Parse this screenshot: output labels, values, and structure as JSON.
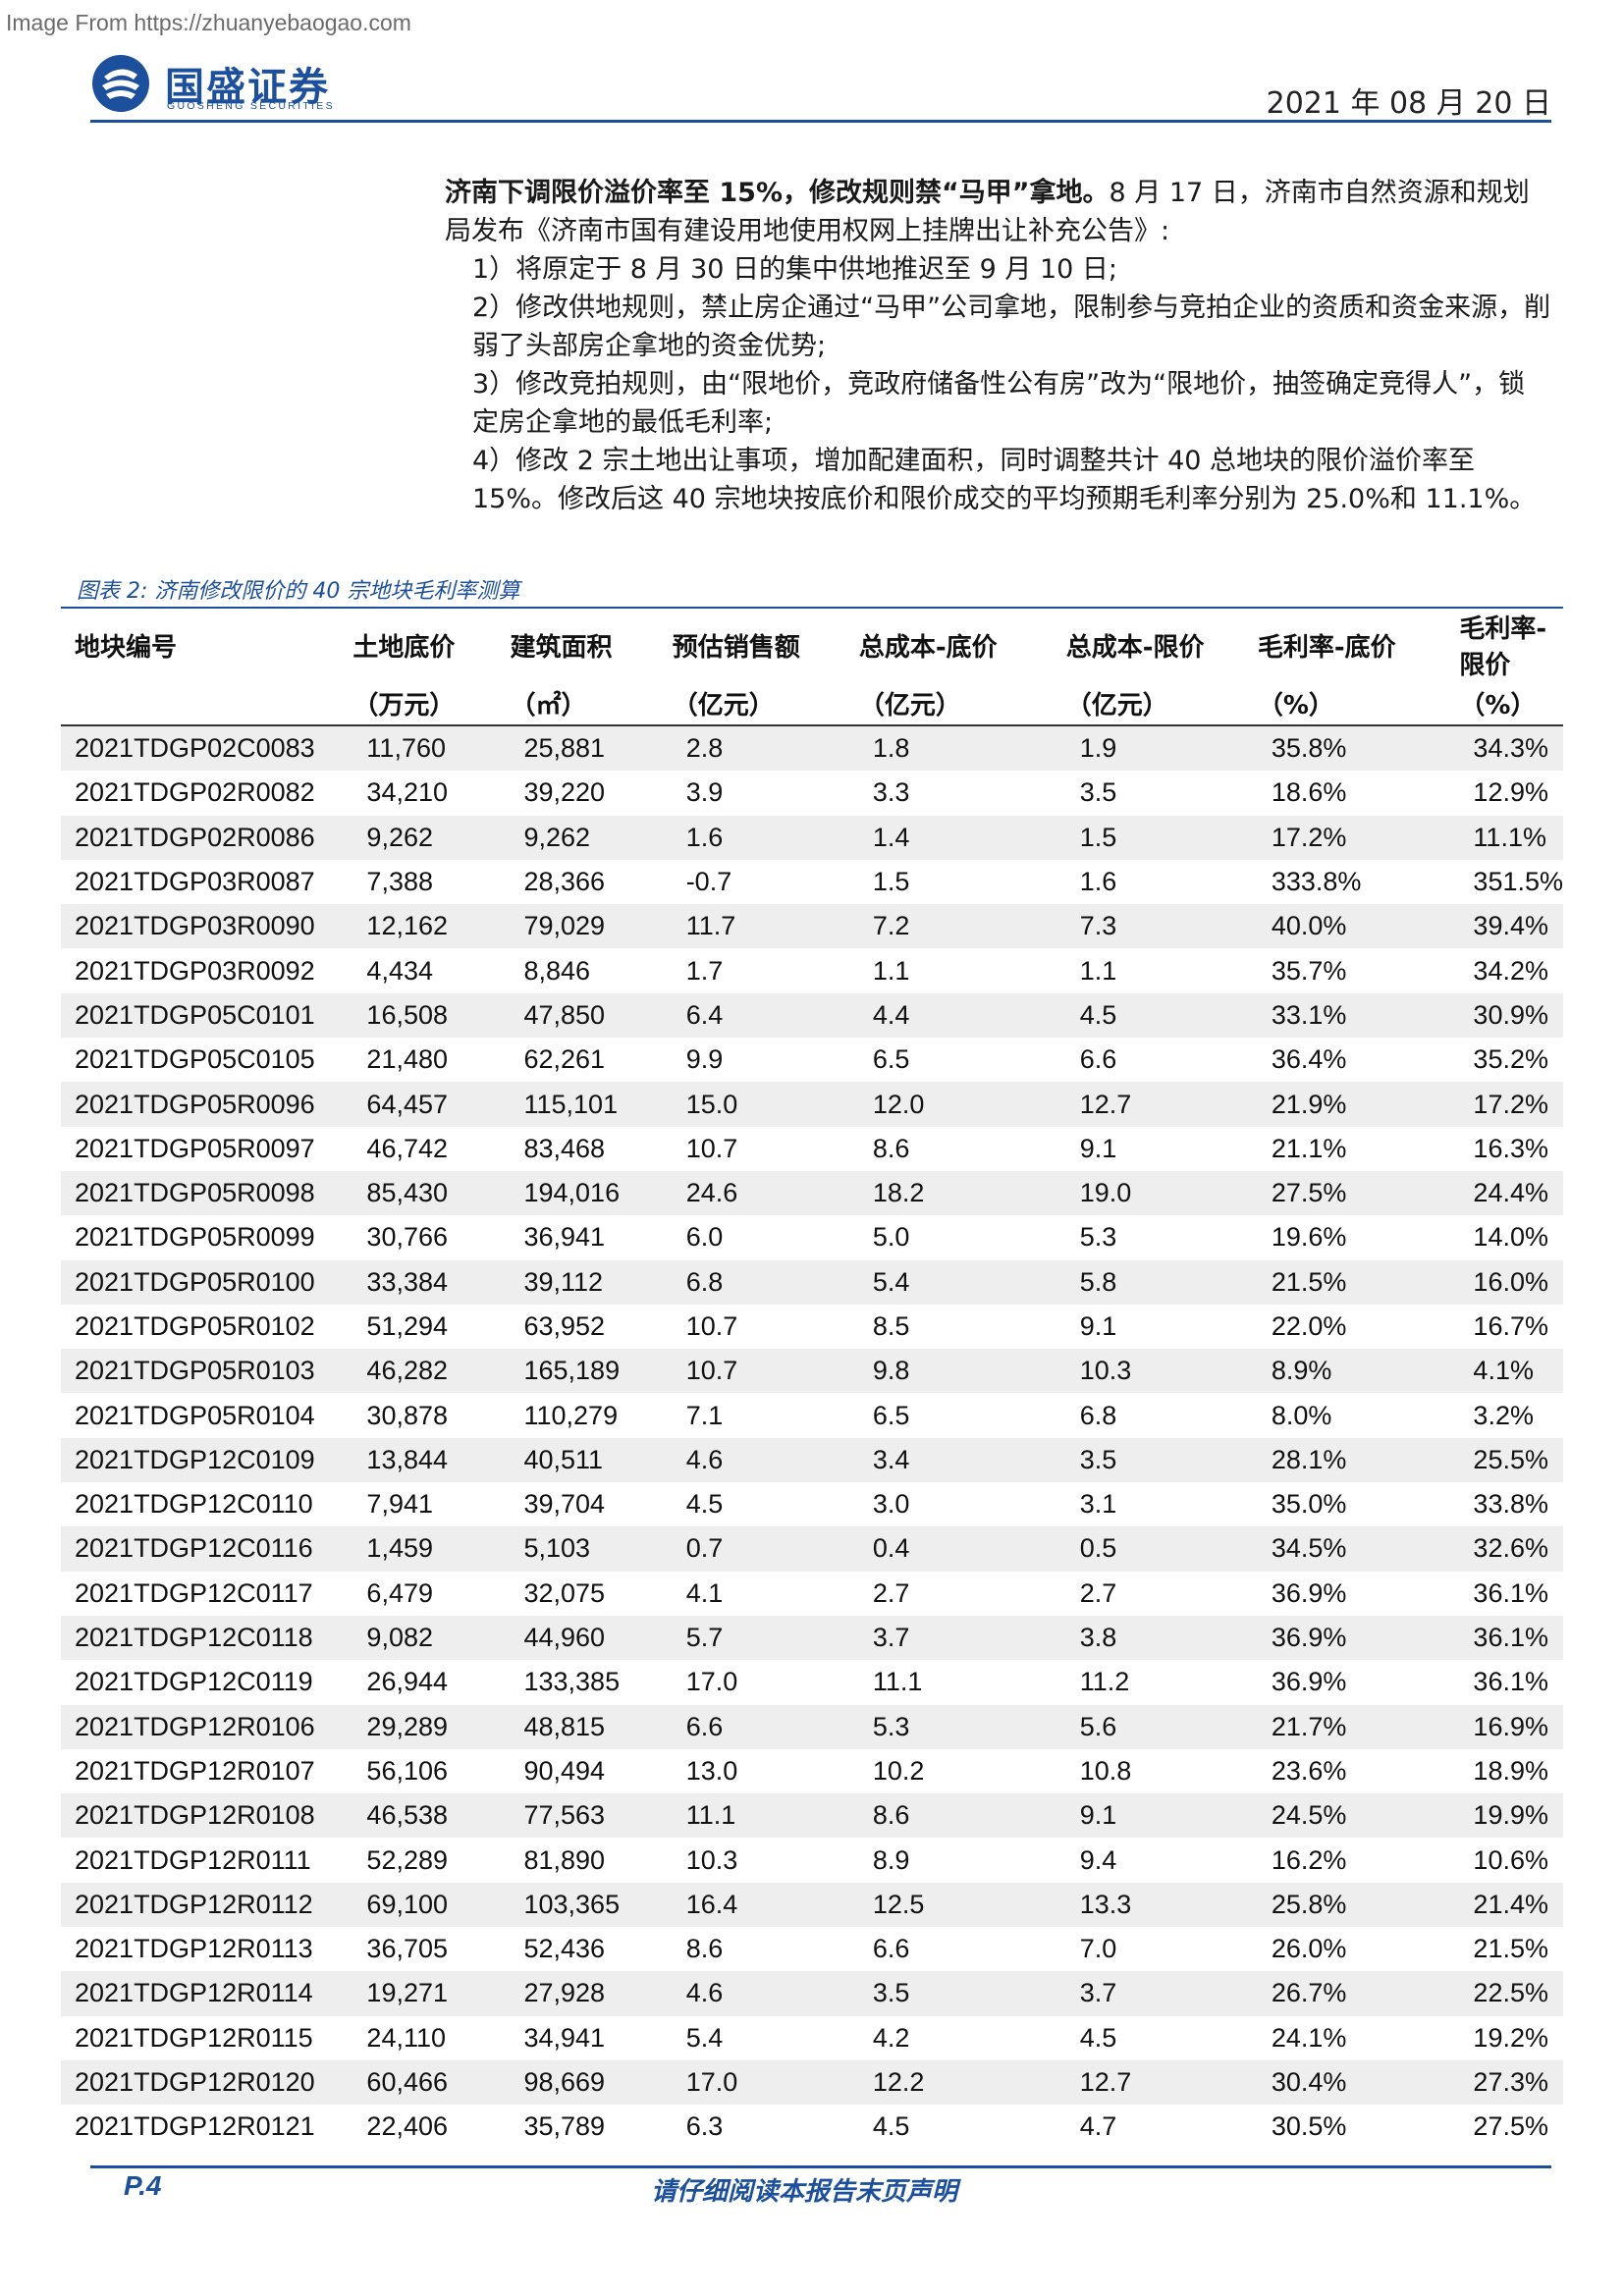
{
  "header": {
    "watermark": "Image From https://zhuanyebaogao.com",
    "logo_cn": "国盛证券",
    "logo_en": "GUOSHENG SECURITIES",
    "date": "2021 年 08 月 20 日",
    "brand_color": "#1c4f9c"
  },
  "body": {
    "lead_bold": "济南下调限价溢价率至 15%，修改规则禁“马甲”拿地。",
    "lead_rest": "8 月 17 日，济南市自然资源和规划局发布《济南市国有建设用地使用权网上挂牌出让补充公告》:",
    "items": [
      "1）将原定于 8 月 30 日的集中供地推迟至 9 月 10 日;",
      "2）修改供地规则，禁止房企通过“马甲”公司拿地，限制参与竞拍企业的资质和资金来源，削弱了头部房企拿地的资金优势;",
      "3）修改竞拍规则，由“限地价，竞政府储备性公有房”改为“限地价，抽签确定竞得人”，锁定房企拿地的最低毛利率;",
      "4）修改 2 宗土地出让事项，增加配建面积，同时调整共计 40 总地块的限价溢价率至 15%。修改后这 40 宗地块按底价和限价成交的平均预期毛利率分别为 25.0%和 11.1%。"
    ]
  },
  "figure": {
    "title": "图表 2: 济南修改限价的 40 宗地块毛利率测算"
  },
  "table": {
    "headers": [
      [
        "地块编号",
        ""
      ],
      [
        "土地底价",
        "（万元）"
      ],
      [
        "建筑面积",
        "（㎡）"
      ],
      [
        "预估销售额",
        "（亿元）"
      ],
      [
        "总成本-底价",
        "（亿元）"
      ],
      [
        "总成本-限价",
        "（亿元）"
      ],
      [
        "毛利率-底价",
        "（%）"
      ],
      [
        "毛利率-限价",
        "（%）"
      ]
    ],
    "rows": [
      [
        "2021TDGP02C0083",
        "11,760",
        "25,881",
        "2.8",
        "1.8",
        "1.9",
        "35.8%",
        "34.3%"
      ],
      [
        "2021TDGP02R0082",
        "34,210",
        "39,220",
        "3.9",
        "3.3",
        "3.5",
        "18.6%",
        "12.9%"
      ],
      [
        "2021TDGP02R0086",
        "9,262",
        "9,262",
        "1.6",
        "1.4",
        "1.5",
        "17.2%",
        "11.1%"
      ],
      [
        "2021TDGP03R0087",
        "7,388",
        "28,366",
        "-0.7",
        "1.5",
        "1.6",
        "333.8%",
        "351.5%"
      ],
      [
        "2021TDGP03R0090",
        "12,162",
        "79,029",
        "11.7",
        "7.2",
        "7.3",
        "40.0%",
        "39.4%"
      ],
      [
        "2021TDGP03R0092",
        "4,434",
        "8,846",
        "1.7",
        "1.1",
        "1.1",
        "35.7%",
        "34.2%"
      ],
      [
        "2021TDGP05C0101",
        "16,508",
        "47,850",
        "6.4",
        "4.4",
        "4.5",
        "33.1%",
        "30.9%"
      ],
      [
        "2021TDGP05C0105",
        "21,480",
        "62,261",
        "9.9",
        "6.5",
        "6.6",
        "36.4%",
        "35.2%"
      ],
      [
        "2021TDGP05R0096",
        "64,457",
        "115,101",
        "15.0",
        "12.0",
        "12.7",
        "21.9%",
        "17.2%"
      ],
      [
        "2021TDGP05R0097",
        "46,742",
        "83,468",
        "10.7",
        "8.6",
        "9.1",
        "21.1%",
        "16.3%"
      ],
      [
        "2021TDGP05R0098",
        "85,430",
        "194,016",
        "24.6",
        "18.2",
        "19.0",
        "27.5%",
        "24.4%"
      ],
      [
        "2021TDGP05R0099",
        "30,766",
        "36,941",
        "6.0",
        "5.0",
        "5.3",
        "19.6%",
        "14.0%"
      ],
      [
        "2021TDGP05R0100",
        "33,384",
        "39,112",
        "6.8",
        "5.4",
        "5.8",
        "21.5%",
        "16.0%"
      ],
      [
        "2021TDGP05R0102",
        "51,294",
        "63,952",
        "10.7",
        "8.5",
        "9.1",
        "22.0%",
        "16.7%"
      ],
      [
        "2021TDGP05R0103",
        "46,282",
        "165,189",
        "10.7",
        "9.8",
        "10.3",
        "8.9%",
        "4.1%"
      ],
      [
        "2021TDGP05R0104",
        "30,878",
        "110,279",
        "7.1",
        "6.5",
        "6.8",
        "8.0%",
        "3.2%"
      ],
      [
        "2021TDGP12C0109",
        "13,844",
        "40,511",
        "4.6",
        "3.4",
        "3.5",
        "28.1%",
        "25.5%"
      ],
      [
        "2021TDGP12C0110",
        "7,941",
        "39,704",
        "4.5",
        "3.0",
        "3.1",
        "35.0%",
        "33.8%"
      ],
      [
        "2021TDGP12C0116",
        "1,459",
        "5,103",
        "0.7",
        "0.4",
        "0.5",
        "34.5%",
        "32.6%"
      ],
      [
        "2021TDGP12C0117",
        "6,479",
        "32,075",
        "4.1",
        "2.7",
        "2.7",
        "36.9%",
        "36.1%"
      ],
      [
        "2021TDGP12C0118",
        "9,082",
        "44,960",
        "5.7",
        "3.7",
        "3.8",
        "36.9%",
        "36.1%"
      ],
      [
        "2021TDGP12C0119",
        "26,944",
        "133,385",
        "17.0",
        "11.1",
        "11.2",
        "36.9%",
        "36.1%"
      ],
      [
        "2021TDGP12R0106",
        "29,289",
        "48,815",
        "6.6",
        "5.3",
        "5.6",
        "21.7%",
        "16.9%"
      ],
      [
        "2021TDGP12R0107",
        "56,106",
        "90,494",
        "13.0",
        "10.2",
        "10.8",
        "23.6%",
        "18.9%"
      ],
      [
        "2021TDGP12R0108",
        "46,538",
        "77,563",
        "11.1",
        "8.6",
        "9.1",
        "24.5%",
        "19.9%"
      ],
      [
        "2021TDGP12R0111",
        "52,289",
        "81,890",
        "10.3",
        "8.9",
        "9.4",
        "16.2%",
        "10.6%"
      ],
      [
        "2021TDGP12R0112",
        "69,100",
        "103,365",
        "16.4",
        "12.5",
        "13.3",
        "25.8%",
        "21.4%"
      ],
      [
        "2021TDGP12R0113",
        "36,705",
        "52,436",
        "8.6",
        "6.6",
        "7.0",
        "26.0%",
        "21.5%"
      ],
      [
        "2021TDGP12R0114",
        "19,271",
        "27,928",
        "4.6",
        "3.5",
        "3.7",
        "26.7%",
        "22.5%"
      ],
      [
        "2021TDGP12R0115",
        "24,110",
        "34,941",
        "5.4",
        "4.2",
        "4.5",
        "24.1%",
        "19.2%"
      ],
      [
        "2021TDGP12R0120",
        "60,466",
        "98,669",
        "17.0",
        "12.2",
        "12.7",
        "30.4%",
        "27.3%"
      ],
      [
        "2021TDGP12R0121",
        "22,406",
        "35,789",
        "6.3",
        "4.5",
        "4.7",
        "30.5%",
        "27.5%"
      ]
    ]
  },
  "footer": {
    "page": "P.4",
    "disclaimer": "请仔细阅读本报告末页声明"
  }
}
